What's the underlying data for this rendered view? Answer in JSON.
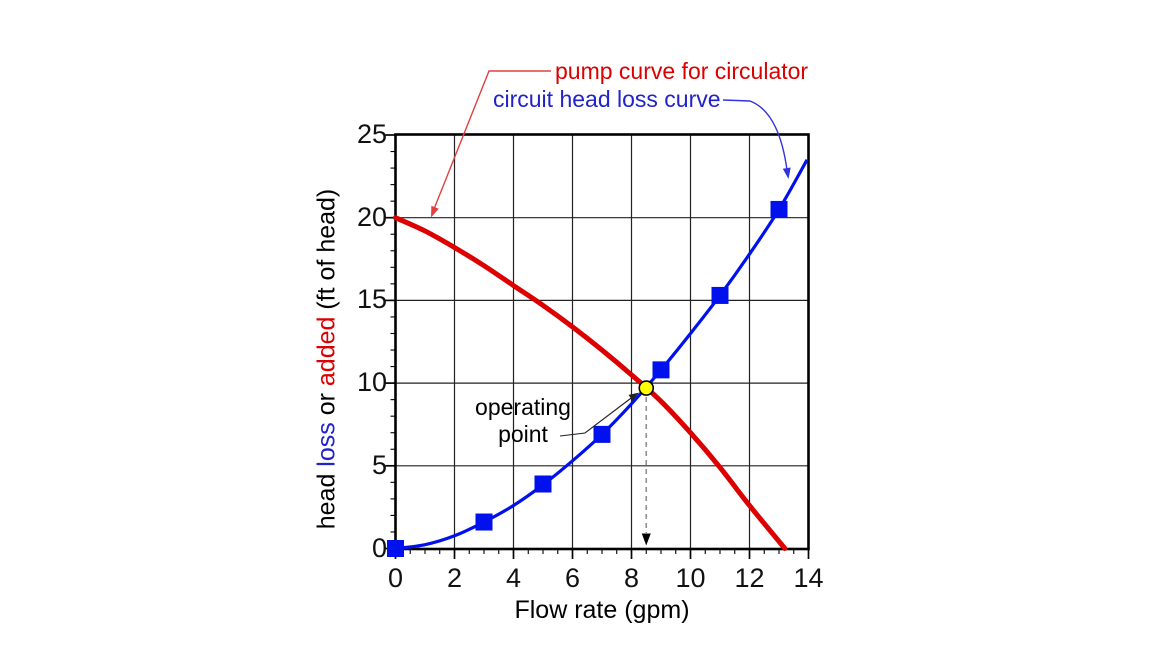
{
  "chart_data": {
    "type": "line",
    "xlabel": "Flow rate (gpm)",
    "ylabel": "head loss or added (ft of head)",
    "ylabel_parts": [
      {
        "text": "head ",
        "color": "#000000"
      },
      {
        "text": "loss",
        "color": "#2222cc"
      },
      {
        "text": " or ",
        "color": "#000000"
      },
      {
        "text": "added",
        "color": "#dd0000"
      },
      {
        "text": " (ft of head)",
        "color": "#000000"
      }
    ],
    "xlim": [
      0,
      14
    ],
    "ylim": [
      0,
      25
    ],
    "x_major_ticks": [
      0,
      2,
      4,
      6,
      8,
      10,
      12,
      14
    ],
    "y_major_ticks": [
      0,
      5,
      10,
      15,
      20,
      25
    ],
    "x_minor_step": 0.5,
    "y_minor_step": 1,
    "grid": {
      "vertical_every": 2,
      "horizontal_every": 5,
      "shown": true
    },
    "legend_position": "annotations-above-plot",
    "series": [
      {
        "name": "pump curve for circulator",
        "color": "#dd0000",
        "marker": "none",
        "points": [
          [
            0,
            20
          ],
          [
            1,
            19.2
          ],
          [
            2,
            18.2
          ],
          [
            3,
            17.1
          ],
          [
            4,
            15.9
          ],
          [
            5,
            14.7
          ],
          [
            6,
            13.4
          ],
          [
            7,
            12.0
          ],
          [
            8,
            10.5
          ],
          [
            9,
            8.9
          ],
          [
            10,
            7.0
          ],
          [
            11,
            4.9
          ],
          [
            12,
            2.6
          ],
          [
            13.2,
            0
          ]
        ]
      },
      {
        "name": "circuit head loss curve",
        "color": "#0011ee",
        "text_color": "#2222cc",
        "marker": "square",
        "points": [
          [
            0,
            0
          ],
          [
            1,
            0.23
          ],
          [
            2,
            0.77
          ],
          [
            3,
            1.6
          ],
          [
            4,
            2.6
          ],
          [
            5,
            3.85
          ],
          [
            6,
            5.3
          ],
          [
            7,
            6.9
          ],
          [
            8,
            8.75
          ],
          [
            9,
            10.8
          ],
          [
            10,
            13.0
          ],
          [
            11,
            15.3
          ],
          [
            12,
            17.8
          ],
          [
            13,
            20.5
          ],
          [
            13.95,
            23.5
          ]
        ],
        "marker_points": [
          [
            0,
            0
          ],
          [
            3,
            1.6
          ],
          [
            5,
            3.9
          ],
          [
            7,
            6.9
          ],
          [
            9,
            10.8
          ],
          [
            11,
            15.3
          ],
          [
            13,
            20.5
          ]
        ]
      }
    ],
    "operating_point": {
      "label": "operating point",
      "label_lines": [
        "operating",
        "point"
      ],
      "x_gpm": 8.5,
      "y_ft": 9.7,
      "marker_fill": "#ffff00",
      "marker_stroke": "#000000"
    },
    "colors": {
      "background": "#ffffff",
      "grid": "#222222",
      "axis": "#000000",
      "tick_text": "#111111",
      "dashed_drop_line": "#909090",
      "pump_leader": "#e04040",
      "circuit_leader": "#3333dd",
      "operating_leader": "#222222"
    }
  }
}
